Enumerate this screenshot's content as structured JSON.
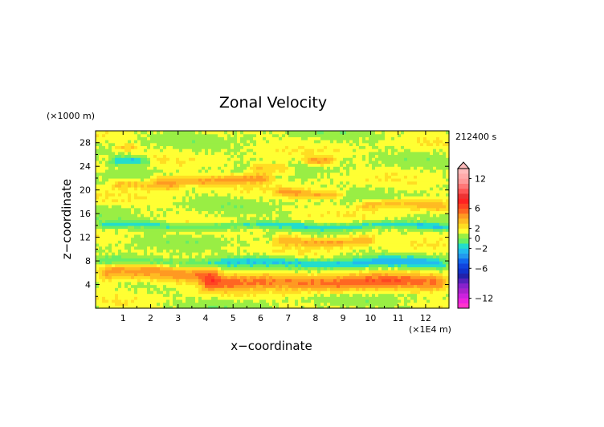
{
  "chart_data": {
    "type": "heatmap",
    "title": "Zonal Velocity",
    "xlabel": "x−coordinate",
    "ylabel": "z−coordinate",
    "x_unit": "(×1E4 m)",
    "y_unit": "(×1000 m)",
    "time_label": "212400 s",
    "xlim": [
      0,
      12.85
    ],
    "ylim": [
      0,
      30
    ],
    "x_ticks": [
      1,
      2,
      3,
      4,
      5,
      6,
      7,
      8,
      9,
      10,
      11,
      12
    ],
    "y_ticks": [
      4,
      8,
      12,
      16,
      20,
      24,
      28
    ],
    "grid": false,
    "colorbar": {
      "levels": [
        -14,
        -13,
        -12,
        -11,
        -10,
        -9,
        -8,
        -7,
        -6,
        -5,
        -4,
        -3,
        -2,
        -1,
        0,
        1,
        2,
        3,
        4,
        5,
        6,
        7,
        8,
        9,
        10,
        11,
        12,
        13,
        14
      ],
      "colors": [
        "#ff33cc",
        "#ee22dd",
        "#cc22dd",
        "#aa22cc",
        "#8822cc",
        "#5522bb",
        "#2222aa",
        "#1133cc",
        "#1144dd",
        "#1166ee",
        "#2299ee",
        "#22bbee",
        "#22ddcc",
        "#66ee66",
        "#99ee44",
        "#ffff33",
        "#ffdd22",
        "#ffbb22",
        "#ff9922",
        "#ff6622",
        "#ff4422",
        "#ff2222",
        "#ee3333",
        "#ff5555",
        "#ff7777",
        "#ff9999",
        "#ffaaaa",
        "#ffbbbb"
      ],
      "tick_labels": [
        "12",
        "6",
        "2",
        "0",
        "−2",
        "−6",
        "−12"
      ],
      "tick_values": [
        12,
        6,
        2,
        0,
        -2,
        -6,
        -12
      ],
      "overflow_arrow": "top"
    },
    "field_description": "layered zonal wind bands (positive/orange near z=4-7 km, mixed elsewhere)",
    "bands": [
      {
        "z": 6.0,
        "v": 3.5,
        "width": 1.6,
        "x0": 0,
        "x1": 4.6
      },
      {
        "z": 4.5,
        "v": 4.0,
        "width": 1.4,
        "x0": 3.8,
        "x1": 12.85
      },
      {
        "z": 7.8,
        "v": -3.0,
        "width": 0.9,
        "x0": 0,
        "x1": 12.85
      },
      {
        "z": 11.5,
        "v": 3.0,
        "width": 0.9,
        "x0": 6.5,
        "x1": 10.2
      },
      {
        "z": 14.0,
        "v": -2.5,
        "width": 0.6,
        "x0": 0,
        "x1": 12.85
      },
      {
        "z": 17.5,
        "v": 2.5,
        "width": 0.8,
        "x0": 9.5,
        "x1": 12.85
      },
      {
        "z": 20.8,
        "v": 2.5,
        "width": 0.8,
        "x0": 0.5,
        "x1": 3.2
      },
      {
        "z": 21.8,
        "v": 3.0,
        "width": 0.8,
        "x0": 2.0,
        "x1": 6.5
      },
      {
        "z": 19.5,
        "v": 3.0,
        "width": 0.7,
        "x0": 6.5,
        "x1": 9.0
      },
      {
        "z": 24.8,
        "v": -3.5,
        "width": 0.7,
        "x0": 0.5,
        "x1": 2.0
      },
      {
        "z": 25.2,
        "v": 3.0,
        "width": 0.7,
        "x0": 7.5,
        "x1": 8.7
      },
      {
        "z": 23.5,
        "v": 2.5,
        "width": 0.9,
        "x0": 5.5,
        "x1": 7.2
      },
      {
        "z": 27.0,
        "v": 2.0,
        "width": 0.5,
        "x0": 0.7,
        "x1": 1.6
      }
    ]
  }
}
